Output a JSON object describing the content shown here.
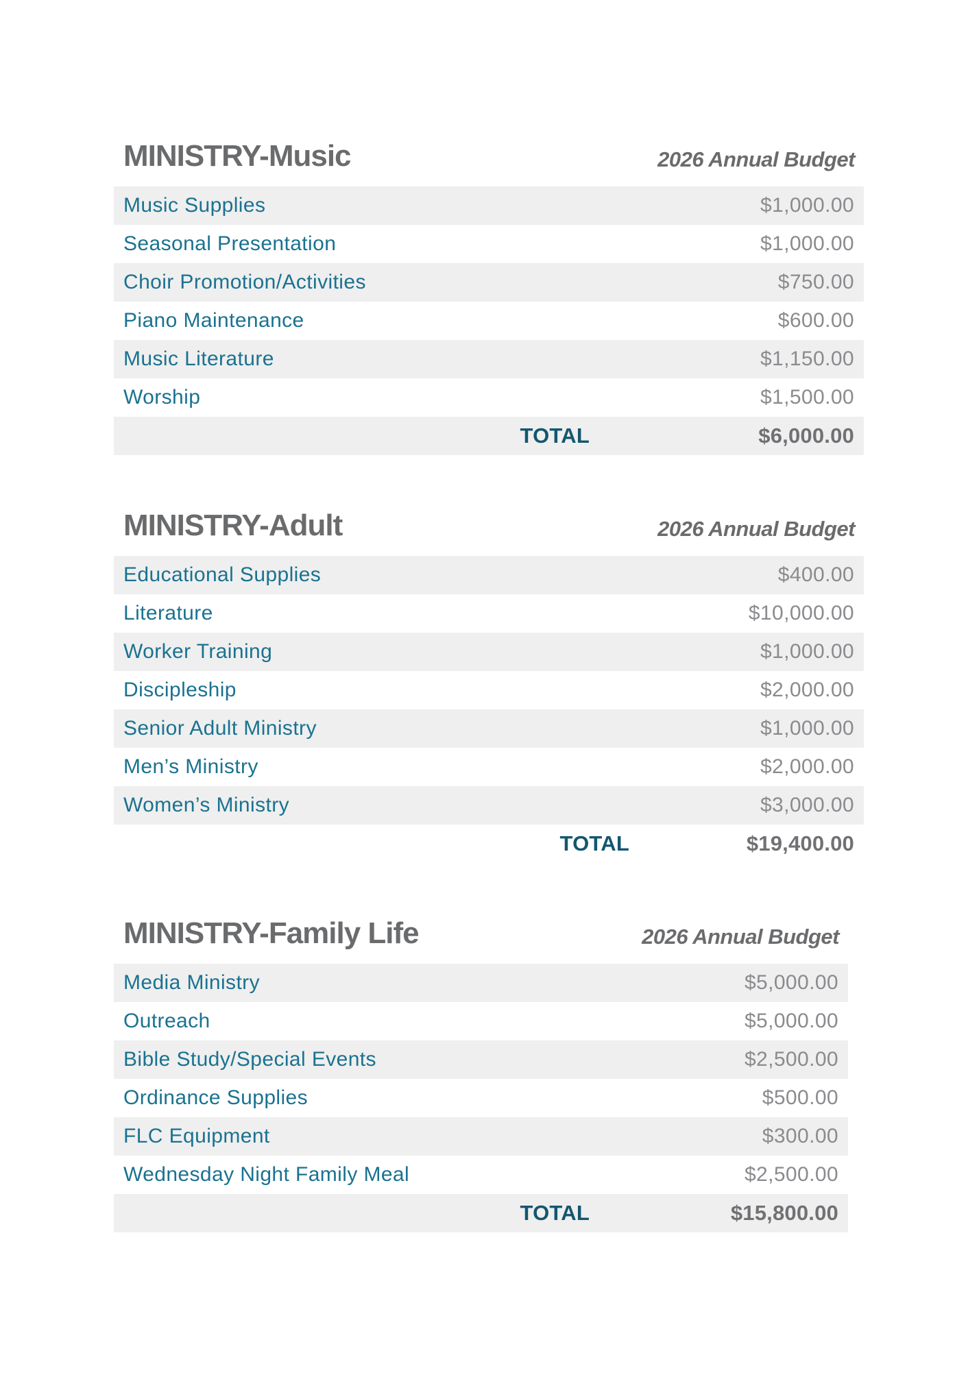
{
  "colors": {
    "section_title_gray": "#6a6b6d",
    "line_item_teal": "#1a7290",
    "amount_gray": "#8a8b8e",
    "total_label_teal": "#14566f",
    "total_amount_gray": "#707174",
    "row_alt_background": "#efefef",
    "page_background": "#ffffff"
  },
  "sections": [
    {
      "title": "MINISTRY-Music",
      "budget_header": "2026 Annual Budget",
      "rows": [
        {
          "label": "Music Supplies",
          "amount": "$1,000.00"
        },
        {
          "label": "Seasonal Presentation",
          "amount": "$1,000.00"
        },
        {
          "label": "Choir Promotion/Activities",
          "amount": "$750.00"
        },
        {
          "label": "Piano Maintenance",
          "amount": "$600.00"
        },
        {
          "label": "Music Literature",
          "amount": "$1,150.00"
        },
        {
          "label": "Worship",
          "amount": "$1,500.00"
        }
      ],
      "total_label": "TOTAL",
      "total_amount": "$6,000.00"
    },
    {
      "title": "MINISTRY-Adult",
      "budget_header": "2026 Annual Budget",
      "rows": [
        {
          "label": "Educational Supplies",
          "amount": "$400.00"
        },
        {
          "label": "Literature",
          "amount": "$10,000.00"
        },
        {
          "label": "Worker Training",
          "amount": "$1,000.00"
        },
        {
          "label": "Discipleship",
          "amount": "$2,000.00"
        },
        {
          "label": "Senior Adult Ministry",
          "amount": "$1,000.00"
        },
        {
          "label": "Men’s Ministry",
          "amount": "$2,000.00"
        },
        {
          "label": "Women’s Ministry",
          "amount": "$3,000.00"
        }
      ],
      "total_label": "TOTAL",
      "total_amount": "$19,400.00"
    },
    {
      "title": "MINISTRY-Family Life",
      "budget_header": "2026 Annual Budget",
      "rows": [
        {
          "label": "Media Ministry",
          "amount": "$5,000.00"
        },
        {
          "label": "Outreach",
          "amount": "$5,000.00"
        },
        {
          "label": "Bible Study/Special Events",
          "amount": "$2,500.00"
        },
        {
          "label": "Ordinance Supplies",
          "amount": "$500.00"
        },
        {
          "label": "FLC Equipment",
          "amount": "$300.00"
        },
        {
          "label": "Wednesday Night Family Meal",
          "amount": "$2,500.00"
        }
      ],
      "total_label": "TOTAL",
      "total_amount": "$15,800.00"
    }
  ]
}
